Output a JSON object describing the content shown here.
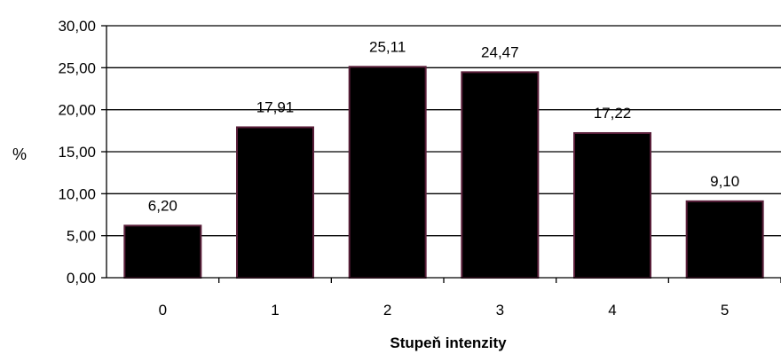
{
  "chart_data": {
    "type": "bar",
    "categories": [
      "0",
      "1",
      "2",
      "3",
      "4",
      "5"
    ],
    "values": [
      6.2,
      17.91,
      25.11,
      24.47,
      17.22,
      9.1
    ],
    "value_labels": [
      "6,20",
      "17,91",
      "25,11",
      "24,47",
      "17,22",
      "9,10"
    ],
    "title": "",
    "xlabel": "Stupeň intenzity",
    "ylabel": "%",
    "ylim": [
      0,
      30
    ],
    "yticks": [
      0,
      5,
      10,
      15,
      20,
      25,
      30
    ],
    "ytick_labels": [
      "0,00",
      "5,00",
      "10,00",
      "15,00",
      "20,00",
      "25,00",
      "30,00"
    ],
    "grid": true,
    "legend": "none",
    "colors": {
      "bar_fill": "#000000",
      "bar_edge": "#5a1f3a",
      "grid": "#000000",
      "background": "#ffffff"
    }
  }
}
